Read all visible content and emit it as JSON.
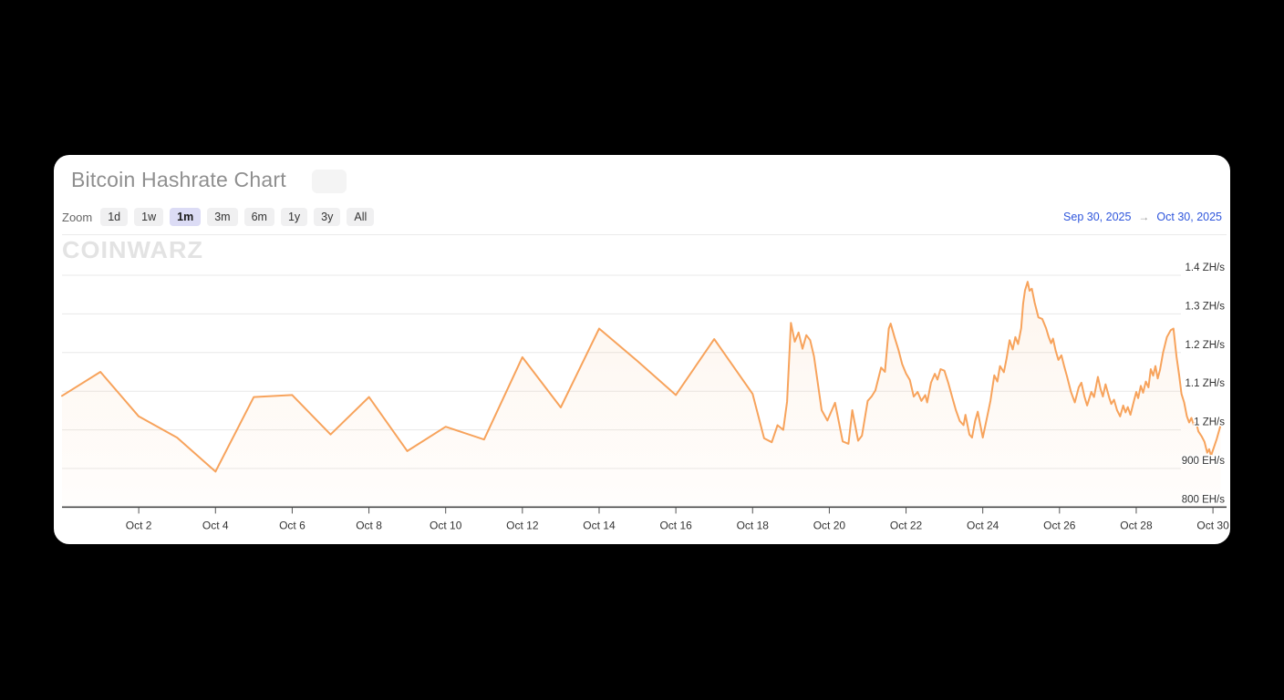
{
  "page": {
    "background": "#000000"
  },
  "card": {
    "title": "Bitcoin Hashrate Chart"
  },
  "range_selector": {
    "zoom_label": "Zoom",
    "buttons": [
      {
        "label": "1d",
        "selected": false
      },
      {
        "label": "1w",
        "selected": false
      },
      {
        "label": "1m",
        "selected": true
      },
      {
        "label": "3m",
        "selected": false
      },
      {
        "label": "6m",
        "selected": false
      },
      {
        "label": "1y",
        "selected": false
      },
      {
        "label": "3y",
        "selected": false
      },
      {
        "label": "All",
        "selected": false
      }
    ],
    "from_date": "Sep 30, 2025",
    "arrow": "→",
    "to_date": "Oct 30, 2025"
  },
  "watermark": "COINWARZ",
  "colors": {
    "line": "#f7a35c",
    "fill_top": "rgba(247,163,92,0.10)",
    "fill_bottom": "rgba(247,163,92,0.02)",
    "gridline": "#e8e8e8",
    "axis_line": "#3a3a3a",
    "tick": "#555555",
    "axis_label": "#333333",
    "title": "#8f8f8f",
    "date_link": "#2f56dc",
    "selected_button_bg": "#dcdcf5",
    "button_bg": "#f0f0f1"
  },
  "chart_data": {
    "type": "area",
    "title": "Bitcoin Hashrate Chart",
    "x_unit": "days since Sep 30, 2025",
    "x_range_days": [
      0,
      30.4
    ],
    "x_tick_days": [
      2,
      4,
      6,
      8,
      10,
      12,
      14,
      16,
      18,
      20,
      22,
      24,
      26,
      28,
      30
    ],
    "x_tick_labels": [
      "Oct 2",
      "Oct 4",
      "Oct 6",
      "Oct 8",
      "Oct 10",
      "Oct 12",
      "Oct 14",
      "Oct 16",
      "Oct 18",
      "Oct 20",
      "Oct 22",
      "Oct 24",
      "Oct 26",
      "Oct 28",
      "Oct 30"
    ],
    "y_unit": "EH/s",
    "y_range": [
      800,
      1400
    ],
    "y_ticks": [
      800,
      900,
      1000,
      1100,
      1200,
      1300,
      1400
    ],
    "y_tick_labels": [
      "800 EH/s",
      "900 EH/s",
      "1 ZH/s",
      "1.1 ZH/s",
      "1.2 ZH/s",
      "1.3 ZH/s",
      "1.4 ZH/s"
    ],
    "grid": true,
    "legend": "none",
    "series": [
      {
        "name": "Bitcoin Hashrate",
        "color": "#f7a35c",
        "points": [
          [
            0,
            1088
          ],
          [
            1,
            1150
          ],
          [
            2,
            1035
          ],
          [
            3,
            980
          ],
          [
            4,
            892
          ],
          [
            5,
            1085
          ],
          [
            6,
            1090
          ],
          [
            7,
            988
          ],
          [
            8,
            1085
          ],
          [
            9,
            945
          ],
          [
            10,
            1008
          ],
          [
            11,
            975
          ],
          [
            12,
            1188
          ],
          [
            13,
            1058
          ],
          [
            14,
            1262
          ],
          [
            15,
            1178
          ],
          [
            16,
            1090
          ],
          [
            17,
            1235
          ],
          [
            18,
            1093
          ],
          [
            18.3,
            978
          ],
          [
            18.5,
            968
          ],
          [
            18.65,
            1012
          ],
          [
            18.8,
            1000
          ],
          [
            18.9,
            1073
          ],
          [
            19,
            1277
          ],
          [
            19.1,
            1228
          ],
          [
            19.2,
            1252
          ],
          [
            19.3,
            1210
          ],
          [
            19.4,
            1245
          ],
          [
            19.5,
            1232
          ],
          [
            19.6,
            1190
          ],
          [
            19.8,
            1051
          ],
          [
            19.95,
            1024
          ],
          [
            20.15,
            1070
          ],
          [
            20.35,
            970
          ],
          [
            20.5,
            964
          ],
          [
            20.6,
            1051
          ],
          [
            20.75,
            972
          ],
          [
            20.85,
            985
          ],
          [
            21,
            1075
          ],
          [
            21.1,
            1086
          ],
          [
            21.2,
            1102
          ],
          [
            21.35,
            1161
          ],
          [
            21.45,
            1150
          ],
          [
            21.55,
            1262
          ],
          [
            21.6,
            1275
          ],
          [
            21.7,
            1240
          ],
          [
            21.8,
            1208
          ],
          [
            21.9,
            1170
          ],
          [
            22,
            1146
          ],
          [
            22.1,
            1129
          ],
          [
            22.2,
            1086
          ],
          [
            22.3,
            1098
          ],
          [
            22.4,
            1075
          ],
          [
            22.5,
            1090
          ],
          [
            22.55,
            1071
          ],
          [
            22.65,
            1122
          ],
          [
            22.75,
            1145
          ],
          [
            22.82,
            1130
          ],
          [
            22.9,
            1157
          ],
          [
            23,
            1153
          ],
          [
            23.1,
            1122
          ],
          [
            23.2,
            1086
          ],
          [
            23.3,
            1051
          ],
          [
            23.4,
            1023
          ],
          [
            23.5,
            1012
          ],
          [
            23.55,
            1039
          ],
          [
            23.65,
            988
          ],
          [
            23.72,
            980
          ],
          [
            23.8,
            1023
          ],
          [
            23.87,
            1047
          ],
          [
            24,
            980
          ],
          [
            24.1,
            1027
          ],
          [
            24.2,
            1075
          ],
          [
            24.3,
            1141
          ],
          [
            24.38,
            1125
          ],
          [
            24.45,
            1165
          ],
          [
            24.55,
            1149
          ],
          [
            24.62,
            1185
          ],
          [
            24.7,
            1232
          ],
          [
            24.78,
            1208
          ],
          [
            24.85,
            1240
          ],
          [
            24.92,
            1222
          ],
          [
            25,
            1263
          ],
          [
            25.05,
            1326
          ],
          [
            25.1,
            1361
          ],
          [
            25.17,
            1383
          ],
          [
            25.22,
            1360
          ],
          [
            25.28,
            1365
          ],
          [
            25.35,
            1330
          ],
          [
            25.45,
            1291
          ],
          [
            25.55,
            1287
          ],
          [
            25.65,
            1263
          ],
          [
            25.72,
            1240
          ],
          [
            25.78,
            1224
          ],
          [
            25.83,
            1236
          ],
          [
            25.9,
            1205
          ],
          [
            25.97,
            1181
          ],
          [
            26.05,
            1193
          ],
          [
            26.12,
            1165
          ],
          [
            26.2,
            1137
          ],
          [
            26.3,
            1098
          ],
          [
            26.4,
            1071
          ],
          [
            26.5,
            1110
          ],
          [
            26.57,
            1122
          ],
          [
            26.65,
            1086
          ],
          [
            26.72,
            1063
          ],
          [
            26.83,
            1098
          ],
          [
            26.9,
            1085
          ],
          [
            27,
            1137
          ],
          [
            27.07,
            1106
          ],
          [
            27.13,
            1086
          ],
          [
            27.2,
            1118
          ],
          [
            27.3,
            1082
          ],
          [
            27.35,
            1067
          ],
          [
            27.42,
            1078
          ],
          [
            27.5,
            1051
          ],
          [
            27.58,
            1035
          ],
          [
            27.66,
            1063
          ],
          [
            27.72,
            1045
          ],
          [
            27.78,
            1059
          ],
          [
            27.85,
            1039
          ],
          [
            27.93,
            1071
          ],
          [
            28,
            1098
          ],
          [
            28.05,
            1082
          ],
          [
            28.12,
            1114
          ],
          [
            28.18,
            1096
          ],
          [
            28.25,
            1125
          ],
          [
            28.32,
            1110
          ],
          [
            28.38,
            1157
          ],
          [
            28.44,
            1140
          ],
          [
            28.5,
            1165
          ],
          [
            28.56,
            1133
          ],
          [
            28.62,
            1155
          ],
          [
            28.7,
            1200
          ],
          [
            28.8,
            1240
          ],
          [
            28.9,
            1258
          ],
          [
            28.97,
            1262
          ],
          [
            29.05,
            1190
          ],
          [
            29.12,
            1140
          ],
          [
            29.18,
            1093
          ],
          [
            29.25,
            1071
          ],
          [
            29.32,
            1035
          ],
          [
            29.38,
            1019
          ],
          [
            29.44,
            1031
          ],
          [
            29.5,
            1012
          ],
          [
            29.56,
            1020
          ],
          [
            29.62,
            996
          ],
          [
            29.7,
            984
          ],
          [
            29.78,
            969
          ],
          [
            29.85,
            941
          ],
          [
            29.9,
            950
          ],
          [
            29.95,
            933
          ],
          [
            30.02,
            953
          ],
          [
            30.1,
            977
          ],
          [
            30.2,
            1012
          ]
        ]
      }
    ]
  }
}
